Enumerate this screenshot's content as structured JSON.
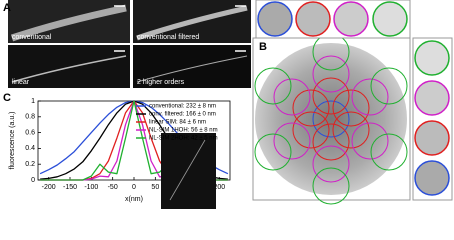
{
  "panel_labels": [
    "A",
    "B",
    "C"
  ],
  "images": [
    "conventional",
    "conventional filtered",
    "linear",
    "2 higher orders"
  ],
  "chart_data": {
    "type": "line",
    "xlabel": "x(nm)",
    "ylabel": "fluorescence (a.u.)",
    "x": [
      -220,
      -200,
      -180,
      -160,
      -140,
      -120,
      -100,
      -80,
      -60,
      -40,
      -20,
      0,
      20,
      40,
      60,
      80,
      100,
      120,
      140,
      160,
      180,
      200,
      220
    ],
    "series": [
      {
        "name": "conventional: 232 ± 8 nm",
        "color": "#2b4fd8",
        "values": [
          0.08,
          0.13,
          0.19,
          0.27,
          0.36,
          0.48,
          0.6,
          0.72,
          0.83,
          0.92,
          0.98,
          1,
          0.98,
          0.92,
          0.83,
          0.72,
          0.6,
          0.48,
          0.36,
          0.27,
          0.19,
          0.13,
          0.08
        ]
      },
      {
        "name": "conv. filtered: 166 ± 0 nm",
        "color": "#000000",
        "values": [
          0.01,
          0.02,
          0.04,
          0.08,
          0.14,
          0.23,
          0.37,
          0.53,
          0.7,
          0.85,
          0.96,
          1,
          0.96,
          0.85,
          0.7,
          0.53,
          0.37,
          0.23,
          0.14,
          0.08,
          0.04,
          0.02,
          0.01
        ]
      },
      {
        "name": "linear SIM: 84 ± 6 nm",
        "color": "#e02020",
        "values": [
          0,
          0,
          0,
          0,
          0,
          0,
          0.02,
          0.08,
          0.24,
          0.53,
          0.85,
          1,
          0.85,
          0.53,
          0.24,
          0.08,
          0.02,
          0,
          0,
          0,
          0,
          0,
          0
        ]
      },
      {
        "name": "NL-SIM 1HOH: 56 ± 8 nm",
        "color": "#d020c8",
        "values": [
          0,
          0,
          0,
          0,
          0,
          0,
          0.01,
          0.05,
          0.04,
          0.24,
          0.7,
          1,
          0.7,
          0.24,
          0.04,
          0.05,
          0.01,
          0,
          0,
          0,
          0,
          0,
          0
        ]
      },
      {
        "name": "NL-SIM 2HOH: 42 ± 5 nm",
        "color": "#20b030",
        "values": [
          0,
          0,
          0,
          0,
          0,
          0,
          0.05,
          0.2,
          0.1,
          0.08,
          0.53,
          1,
          0.53,
          0.08,
          0.1,
          0.2,
          0.05,
          0,
          0,
          0,
          0,
          0,
          0
        ]
      }
    ],
    "xlim": [
      -225,
      225
    ],
    "ylim": [
      0,
      1
    ],
    "xticks": [
      -200,
      -150,
      -100,
      -50,
      0,
      50,
      100,
      150,
      200
    ],
    "yticks": [
      0,
      0.2,
      0.4,
      0.6,
      0.8,
      1
    ]
  }
}
